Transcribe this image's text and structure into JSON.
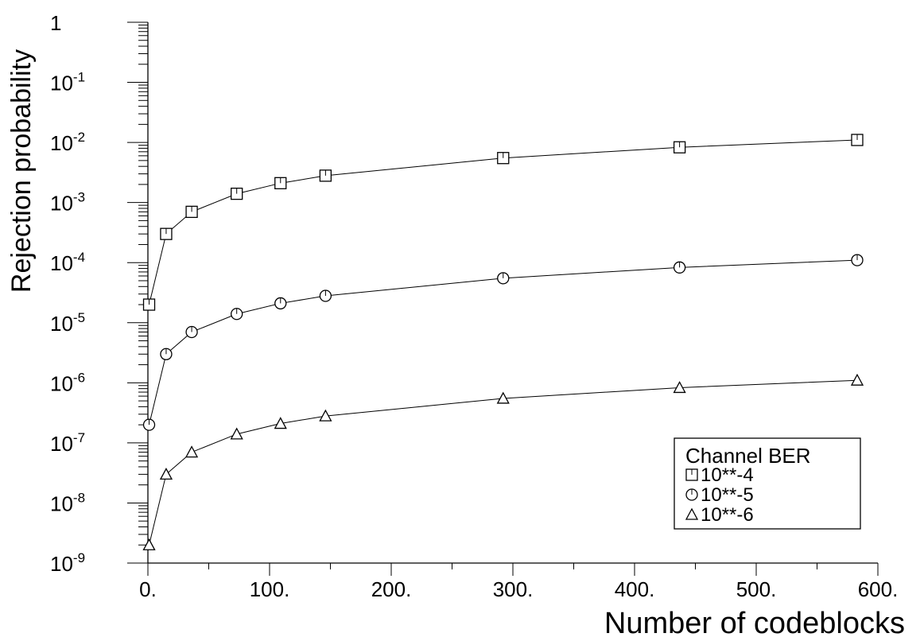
{
  "chart_data": {
    "type": "line",
    "title": "",
    "xlabel": "Number of codeblocks",
    "ylabel": "Rejection probability",
    "yscale": "log",
    "xlim": [
      0,
      600
    ],
    "ylim": [
      1e-09,
      1
    ],
    "x_tick_labels": [
      "0.",
      "100.",
      "200.",
      "300.",
      "400.",
      "500.",
      "600."
    ],
    "x_ticks": [
      0,
      100,
      200,
      300,
      400,
      500,
      600
    ],
    "y_tick_labels": [
      {
        "base": "10",
        "exp": "-9"
      },
      {
        "base": "10",
        "exp": "-8"
      },
      {
        "base": "10",
        "exp": "-7"
      },
      {
        "base": "10",
        "exp": "-6"
      },
      {
        "base": "10",
        "exp": "-5"
      },
      {
        "base": "10",
        "exp": "-4"
      },
      {
        "base": "10",
        "exp": "-3"
      },
      {
        "base": "10",
        "exp": "-2"
      },
      {
        "base": "10",
        "exp": "-1"
      },
      {
        "base": "1",
        "exp": ""
      }
    ],
    "y_ticks_log10": [
      -9,
      -8,
      -7,
      -6,
      -5,
      -4,
      -3,
      -2,
      -1,
      0
    ],
    "x": [
      1,
      15,
      36,
      73,
      109,
      146,
      292,
      437,
      583
    ],
    "series": [
      {
        "name": "10**-4",
        "marker": "square",
        "values": [
          2e-05,
          0.0003,
          0.0007,
          0.0014,
          0.0021,
          0.0028,
          0.0055,
          0.0083,
          0.011
        ]
      },
      {
        "name": "10**-5",
        "marker": "circle",
        "values": [
          2e-07,
          3e-06,
          7e-06,
          1.4e-05,
          2.1e-05,
          2.8e-05,
          5.5e-05,
          8.3e-05,
          0.00011
        ]
      },
      {
        "name": "10**-6",
        "marker": "triangle",
        "values": [
          2e-09,
          3e-08,
          7e-08,
          1.4e-07,
          2.1e-07,
          2.8e-07,
          5.5e-07,
          8.3e-07,
          1.1e-06
        ]
      }
    ],
    "legend": {
      "title": "Channel BER",
      "placement": "bottom-right"
    },
    "grid": false
  }
}
